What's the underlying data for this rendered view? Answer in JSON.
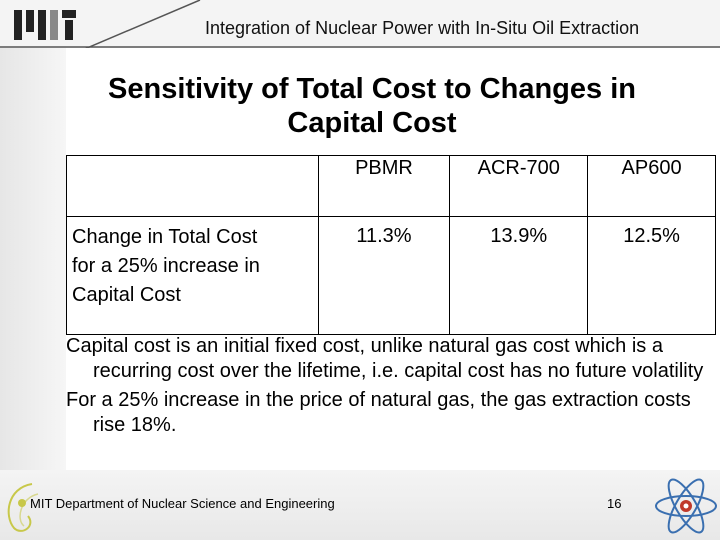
{
  "header": {
    "title": "Integration of Nuclear Power with In-Situ Oil Extraction"
  },
  "slide": {
    "title_line1": "Sensitivity of Total Cost to Changes in",
    "title_line2": "Capital Cost"
  },
  "table": {
    "columns": [
      "",
      "PBMR",
      "ACR-700",
      "AP600"
    ],
    "row": {
      "label_line1": "Change in Total Cost",
      "label_line2": "for a 25% increase in",
      "label_line3": "Capital Cost",
      "values": [
        "11.3%",
        "13.9%",
        "12.5%"
      ]
    }
  },
  "bullets": [
    "Capital cost is an initial fixed cost, unlike natural gas cost which is a recurring cost over the lifetime, i.e. capital cost has no future volatility",
    "For a 25% increase in the price of natural gas, the gas extraction costs rise 18%."
  ],
  "footer": {
    "department": "MIT Department of Nuclear Science and Engineering",
    "page_number": "16"
  },
  "colors": {
    "header_line": "#555555",
    "bullet_dot": "#c8c84a",
    "atom_orbit": "#3a6fb0",
    "atom_nucleus": "#c0392b"
  }
}
